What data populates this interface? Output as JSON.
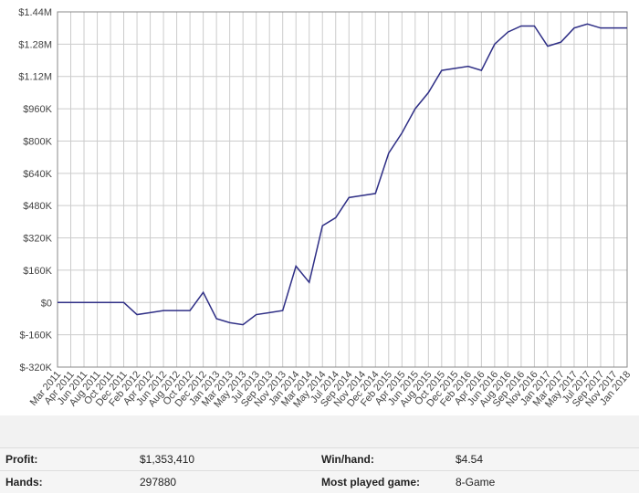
{
  "chart_data": {
    "type": "line",
    "categories": [
      "Mar 2011",
      "Apr 2011",
      "Jun 2011",
      "Aug 2011",
      "Oct 2011",
      "Dec 2011",
      "Feb 2012",
      "Apr 2012",
      "Jun 2012",
      "Aug 2012",
      "Oct 2012",
      "Dec 2012",
      "Jan 2013",
      "Mar 2013",
      "May 2013",
      "Jul 2013",
      "Sep 2013",
      "Nov 2013",
      "Jan 2014",
      "Mar 2014",
      "May 2014",
      "Jul 2014",
      "Sep 2014",
      "Nov 2014",
      "Dec 2014",
      "Feb 2015",
      "Apr 2015",
      "Jun 2015",
      "Aug 2015",
      "Oct 2015",
      "Dec 2015",
      "Feb 2016",
      "Apr 2016",
      "Jun 2016",
      "Aug 2016",
      "Sep 2016",
      "Nov 2016",
      "Jan 2017",
      "Mar 2017",
      "May 2017",
      "Jul 2017",
      "Sep 2017",
      "Nov 2017",
      "Jan 2018"
    ],
    "series": [
      {
        "color": "#2f2f86",
        "values": [
          0,
          0,
          0,
          0,
          0,
          0,
          -60000,
          -50000,
          -40000,
          -40000,
          -40000,
          50000,
          -80000,
          -100000,
          -110000,
          -60000,
          -50000,
          -40000,
          180000,
          100000,
          380000,
          420000,
          520000,
          530000,
          540000,
          740000,
          840000,
          960000,
          1040000,
          1150000,
          1160000,
          1170000,
          1150000,
          1280000,
          1340000,
          1370000,
          1370000,
          1270000,
          1290000,
          1360000,
          1380000,
          1360000,
          1360000,
          1360000
        ]
      }
    ],
    "ylim": [
      -320000,
      1440000
    ],
    "yticks": [
      {
        "value": -320000,
        "label": "$-320K"
      },
      {
        "value": -160000,
        "label": "$-160K"
      },
      {
        "value": 0,
        "label": "$0"
      },
      {
        "value": 160000,
        "label": "$160K"
      },
      {
        "value": 320000,
        "label": "$320K"
      },
      {
        "value": 480000,
        "label": "$480K"
      },
      {
        "value": 640000,
        "label": "$640K"
      },
      {
        "value": 800000,
        "label": "$800K"
      },
      {
        "value": 960000,
        "label": "$960K"
      },
      {
        "value": 1120000,
        "label": "$1.12M"
      },
      {
        "value": 1280000,
        "label": "$1.28M"
      },
      {
        "value": 1440000,
        "label": "$1.44M"
      }
    ],
    "grid": true
  },
  "stats": {
    "rows": [
      [
        {
          "label": "Profit:",
          "value": "$1,353,410"
        },
        {
          "label": "Win/hand:",
          "value": "$4.54"
        }
      ],
      [
        {
          "label": "Hands:",
          "value": "297880"
        },
        {
          "label": "Most played game:",
          "value": "8-Game"
        }
      ]
    ]
  }
}
